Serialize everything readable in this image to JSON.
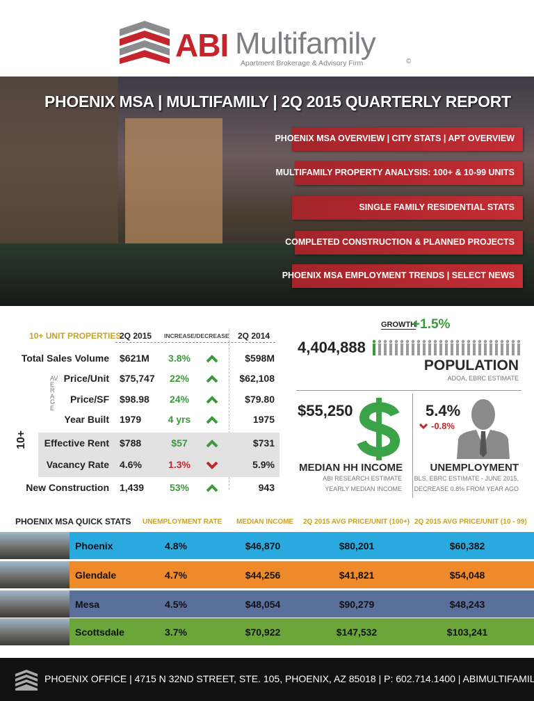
{
  "header": {
    "logo": "ABI",
    "logo_name": "Multifamily",
    "tagline": "Apartment Brokerage & Advisory Firm",
    "copyright": "©"
  },
  "hero": {
    "title": "PHOENIX MSA | MULTIFAMILY | 2Q 2015 QUARTERLY REPORT",
    "banners": [
      "PHOENIX MSA OVERVIEW | CITY STATS | APT OVERVIEW",
      "MULTIFAMILY PROPERTY ANALYSIS: 100+ & 10-99 UNITS",
      "SINGLE FAMILY RESIDENTIAL STATS",
      "COMPLETED CONSTRUCTION & PLANNED PROJECTS",
      "PHOENIX MSA EMPLOYMENT TRENDS | SELECT NEWS"
    ]
  },
  "properties": {
    "header": [
      "10+ UNIT PROPERTIES",
      "2Q 2015",
      "INCREASE/DECREASE",
      "2Q 2014"
    ],
    "average_label": "AVERAGE",
    "group_label": "10+",
    "rows": [
      {
        "label": "Total Sales Volume",
        "current": "$621M",
        "change": "3.8%",
        "trend": "up",
        "previous": "$598M"
      },
      {
        "label": "Price/Unit",
        "current": "$75,747",
        "change": "22%",
        "trend": "up",
        "previous": "$62,108"
      },
      {
        "label": "Price/SF",
        "current": "$98.98",
        "change": "24%",
        "trend": "up",
        "previous": "$79.80"
      },
      {
        "label": "Year Built",
        "current": "1979",
        "change": "4 yrs",
        "trend": "up",
        "previous": "1975"
      },
      {
        "label": "Effective Rent",
        "current": "$788",
        "change": "$57",
        "trend": "up",
        "previous": "$731"
      },
      {
        "label": "Vacancy Rate",
        "current": "4.6%",
        "change": "1.3%",
        "trend": "down",
        "previous": "5.9%"
      },
      {
        "label": "New Construction",
        "current": "1,439",
        "change": "53%",
        "trend": "up",
        "previous": "943"
      }
    ]
  },
  "population": {
    "growth_label": "GROWTH",
    "growth": "+1.5%",
    "value": "4,404,888",
    "label": "POPULATION",
    "source": "ADOA, EBRC ESTIMATE"
  },
  "income": {
    "value": "$55,250",
    "label": "MEDIAN HH INCOME",
    "source": [
      "ABI RESEARCH ESTIMATE",
      "YEARLY MEDIAN INCOME"
    ]
  },
  "unemployment": {
    "value": "5.4%",
    "change": "-0.8%",
    "label": "UNEMPLOYMENT",
    "source": [
      "BLS, EBRC ESTIMATE - JUNE 2015,",
      "DECREASE 0.8% FROM YEAR AGO"
    ]
  },
  "quick_stats": {
    "header": [
      "PHOENIX MSA QUICK STATS",
      "UNEMPLOYMENT RATE",
      "MEDIAN INCOME",
      "2Q 2015 AVG PRICE/UNIT (100+)",
      "2Q 2015 AVG PRICE/UNIT (10 - 99)"
    ],
    "rows": [
      {
        "city": "Phoenix",
        "color": "#2aa9df",
        "cells": [
          "4.8%",
          "$46,870",
          "$80,201",
          "$60,382"
        ]
      },
      {
        "city": "Glendale",
        "color": "#ef8a2b",
        "cells": [
          "4.7%",
          "$44,256",
          "$41,821",
          "$54,048"
        ]
      },
      {
        "city": "Mesa",
        "color": "#5b6f9b",
        "cells": [
          "4.5%",
          "$48,054",
          "$90,279",
          "$48,243"
        ]
      },
      {
        "city": "Scottsdale",
        "color": "#6aa63a",
        "cells": [
          "3.7%",
          "$70,922",
          "$147,532",
          "$103,241"
        ]
      }
    ]
  },
  "footer": {
    "text": "PHOENIX OFFICE | 4715 N 32ND STREET, STE. 105, PHOENIX, AZ 85018 | P: 602.714.1400 | ABIMULTIFAMILY.COM"
  }
}
